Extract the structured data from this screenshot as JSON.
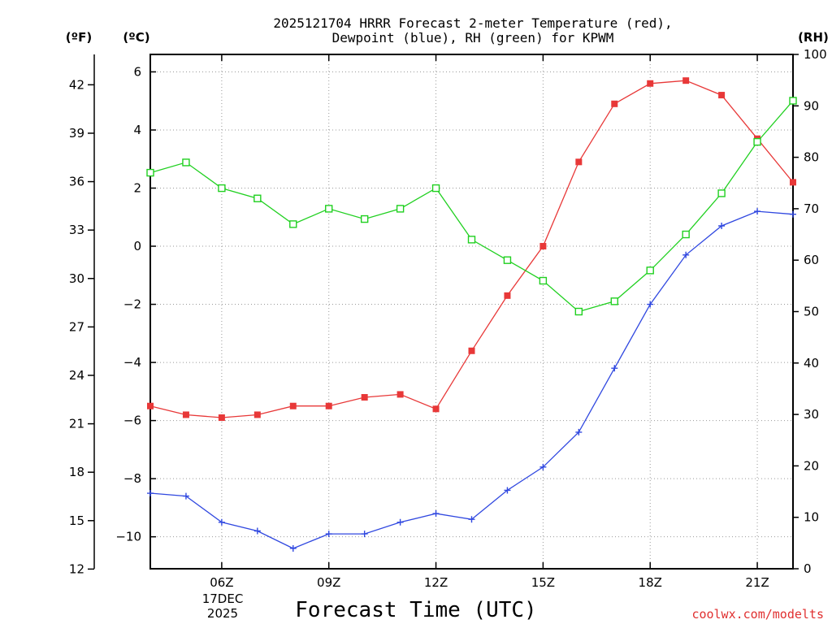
{
  "chart_data": {
    "type": "line",
    "title_line1": "2025121704 HRRR Forecast 2-meter Temperature (red),",
    "title_line2": "Dewpoint (blue), RH (green) for KPWM",
    "xlabel": "Forecast Time (UTC)",
    "credit": "coolwx.com/modelts",
    "unit_f": "(ºF)",
    "unit_c": "(ºC)",
    "unit_rh": "(RH)",
    "date_line1": "17DEC",
    "date_line2": "2025",
    "x_hours": [
      4,
      5,
      6,
      7,
      8,
      9,
      10,
      11,
      12,
      13,
      14,
      15,
      16,
      17,
      18,
      19,
      20,
      21,
      22
    ],
    "x_range": [
      4,
      22
    ],
    "x_ticks": [
      {
        "hour": 6,
        "label": "06Z"
      },
      {
        "hour": 9,
        "label": "09Z"
      },
      {
        "hour": 12,
        "label": "12Z"
      },
      {
        "hour": 15,
        "label": "15Z"
      },
      {
        "hour": 18,
        "label": "18Z"
      },
      {
        "hour": 21,
        "label": "21Z"
      }
    ],
    "celsius_range": [
      -11.1,
      6.6
    ],
    "celsius_ticks": [
      -10,
      -8,
      -6,
      -4,
      -2,
      0,
      2,
      4,
      6
    ],
    "celsius_tick_labels": [
      "−10",
      "−8",
      "−6",
      "−4",
      "−2",
      "0",
      "2",
      "4",
      "6"
    ],
    "fahrenheit_ticks": [
      12,
      15,
      18,
      21,
      24,
      27,
      30,
      33,
      36,
      39,
      42
    ],
    "fahrenheit_tick_labels": [
      "12",
      "15",
      "18",
      "21",
      "24",
      "27",
      "30",
      "33",
      "36",
      "39",
      "42"
    ],
    "rh_range": [
      0,
      100
    ],
    "rh_ticks": [
      0,
      10,
      20,
      30,
      40,
      50,
      60,
      70,
      80,
      90,
      100
    ],
    "rh_tick_labels": [
      "0",
      "10",
      "20",
      "30",
      "40",
      "50",
      "60",
      "70",
      "80",
      "90",
      "100"
    ],
    "series": [
      {
        "name": "2-meter Temperature",
        "color": "#e83838",
        "axis": "celsius",
        "marker": "filled-square",
        "values": [
          -5.5,
          -5.8,
          -5.9,
          -5.8,
          -5.5,
          -5.5,
          -5.2,
          -5.1,
          -5.6,
          -3.6,
          -1.7,
          0.0,
          2.9,
          4.9,
          5.6,
          5.7,
          5.2,
          3.7,
          2.2
        ]
      },
      {
        "name": "Dewpoint",
        "color": "#3048e0",
        "axis": "celsius",
        "marker": "plus",
        "values": [
          -8.5,
          -8.6,
          -9.5,
          -9.8,
          -10.4,
          -9.9,
          -9.9,
          -9.5,
          -9.2,
          -9.4,
          -8.4,
          -7.6,
          -6.4,
          -4.2,
          -2.0,
          -0.3,
          0.7,
          1.2,
          1.1
        ]
      },
      {
        "name": "RH",
        "color": "#20d020",
        "axis": "rh",
        "marker": "open-square",
        "values": [
          77,
          79,
          74,
          72,
          67,
          70,
          68,
          70,
          74,
          64,
          60,
          56,
          50,
          52,
          58,
          65,
          73,
          83,
          91
        ]
      }
    ]
  }
}
